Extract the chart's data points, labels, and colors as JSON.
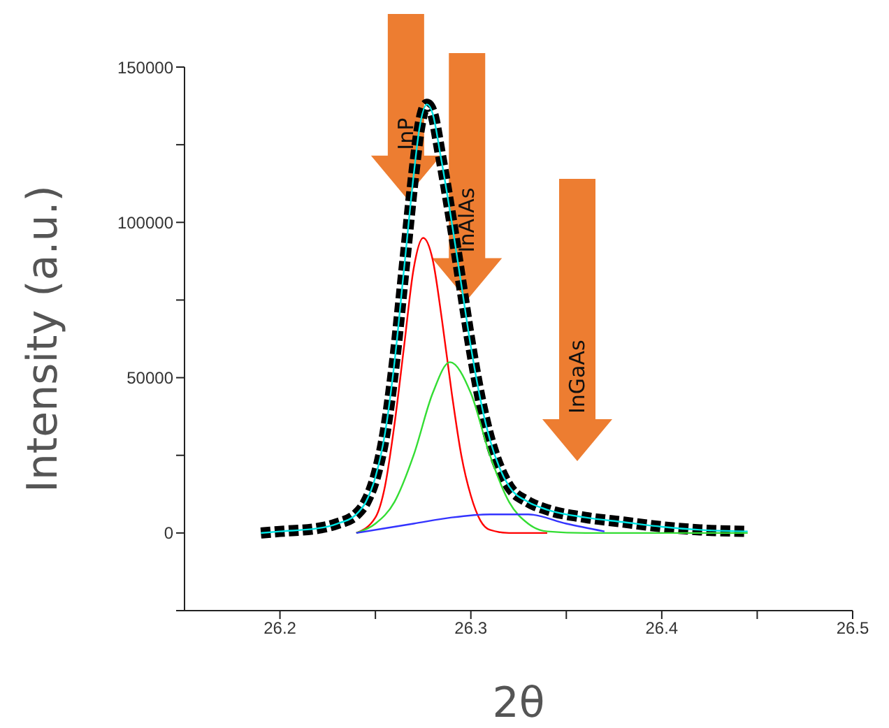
{
  "chart_data": {
    "type": "line",
    "xlabel": "2θ",
    "ylabel": "Intensity (a.u.)",
    "xlim": [
      26.15,
      26.5
    ],
    "ylim": [
      -25000,
      150000
    ],
    "xticks": [
      26.2,
      {
        "value": 26.25,
        "label": null
      },
      26.3,
      {
        "value": 26.35,
        "label": null
      },
      26.4,
      {
        "value": 26.45,
        "label": null
      },
      26.5
    ],
    "yticks": [
      {
        "value": -25000,
        "label": null
      },
      0,
      {
        "value": 25000,
        "label": null
      },
      50000,
      {
        "value": 75000,
        "label": null
      },
      100000,
      {
        "value": 125000,
        "label": null
      },
      150000
    ],
    "grid": false,
    "legend": false,
    "series": [
      {
        "color": "#000000",
        "line_style": "dashed",
        "x": [
          26.19,
          26.2,
          26.22,
          26.23,
          26.24,
          26.245,
          26.25,
          26.255,
          26.26,
          26.265,
          26.27,
          26.273,
          26.277,
          26.28,
          26.284,
          26.29,
          26.295,
          26.3,
          26.305,
          26.31,
          26.315,
          26.32,
          26.33,
          26.34,
          26.36,
          26.38,
          26.4,
          26.42,
          26.445
        ],
        "values": [
          0,
          500,
          1500,
          3000,
          6000,
          10000,
          18000,
          32000,
          55000,
          85000,
          115000,
          130000,
          138000,
          135000,
          122000,
          100000,
          80000,
          60000,
          43000,
          30000,
          21000,
          15000,
          10000,
          7500,
          5000,
          3500,
          2000,
          1000,
          500
        ]
      },
      {
        "color": "#00e5e5",
        "line_style": "solid",
        "x": [
          26.19,
          26.2,
          26.22,
          26.23,
          26.24,
          26.245,
          26.25,
          26.255,
          26.26,
          26.265,
          26.27,
          26.273,
          26.277,
          26.28,
          26.284,
          26.29,
          26.295,
          26.3,
          26.305,
          26.31,
          26.315,
          26.32,
          26.33,
          26.34,
          26.36,
          26.38,
          26.4,
          26.42,
          26.445
        ],
        "values": [
          0,
          500,
          1500,
          3000,
          6000,
          10000,
          18000,
          32000,
          55000,
          85000,
          115000,
          130000,
          138000,
          135000,
          122000,
          100000,
          80000,
          60000,
          43000,
          30000,
          21000,
          15000,
          10000,
          7500,
          5000,
          3500,
          2000,
          1000,
          500
        ]
      },
      {
        "color": "#ff0000",
        "line_style": "solid",
        "x": [
          26.24,
          26.25,
          26.255,
          26.26,
          26.265,
          26.27,
          26.275,
          26.28,
          26.285,
          26.29,
          26.295,
          26.3,
          26.305,
          26.31,
          26.32,
          26.34
        ],
        "values": [
          0,
          5000,
          15000,
          35000,
          60000,
          85000,
          95000,
          88000,
          68000,
          45000,
          25000,
          12000,
          4000,
          1000,
          0,
          0
        ]
      },
      {
        "color": "#33dd33",
        "line_style": "solid",
        "x": [
          26.24,
          26.25,
          26.26,
          26.27,
          26.28,
          26.289,
          26.3,
          26.31,
          26.32,
          26.33,
          26.34,
          26.36,
          26.445
        ],
        "values": [
          0,
          3000,
          10000,
          25000,
          45000,
          55000,
          45000,
          25000,
          10000,
          3000,
          500,
          0,
          0
        ]
      },
      {
        "color": "#3333ff",
        "line_style": "solid",
        "x": [
          26.24,
          26.27,
          26.29,
          26.31,
          26.33,
          26.35,
          26.37
        ],
        "values": [
          0,
          3000,
          5000,
          6000,
          6000,
          3000,
          500
        ]
      }
    ],
    "annotations": [
      {
        "text": "InP",
        "x": 26.266,
        "y": 108000
      },
      {
        "text": "InAlAs",
        "x": 26.298,
        "y": 75000
      },
      "InGaAs"
    ]
  }
}
